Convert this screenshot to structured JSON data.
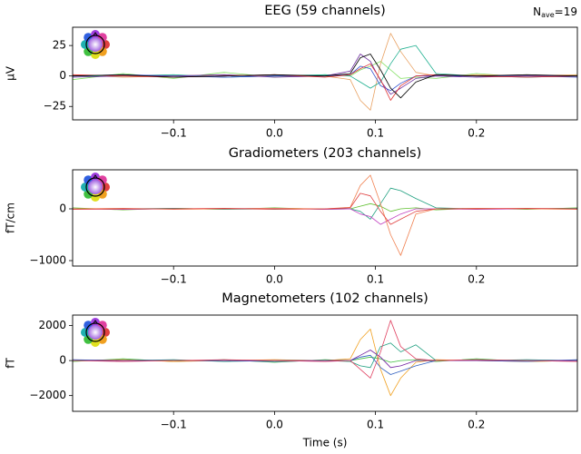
{
  "chart_data": [
    {
      "type": "line",
      "title": "EEG (59 channels)",
      "ylabel": "µV",
      "annotation": {
        "base": "N",
        "sub": "ave",
        "rest": "=19"
      },
      "xlim": [
        -0.2,
        0.3
      ],
      "xticks": [
        {
          "value": -0.1,
          "label": "−0.1"
        },
        {
          "value": 0,
          "label": "0.0"
        },
        {
          "value": 0.1,
          "label": "0.1"
        },
        {
          "value": 0.2,
          "label": "0.2"
        }
      ],
      "ylim": [
        -36,
        40
      ],
      "yticks": [
        {
          "value": -25,
          "label": "−25"
        },
        0,
        25
      ],
      "x": [
        -0.2,
        -0.15,
        -0.1,
        -0.05,
        0,
        0.05,
        0.075,
        0.085,
        0.095,
        0.105,
        0.115,
        0.125,
        0.14,
        0.16,
        0.2,
        0.25,
        0.3
      ],
      "series": [
        {
          "color": "#80e060",
          "values": [
            -3,
            2,
            -2,
            3,
            -1,
            1,
            0,
            5,
            8,
            12,
            5,
            -2,
            -1,
            -2,
            2,
            -1,
            1
          ]
        },
        {
          "color": "#e8a060",
          "values": [
            1,
            -1,
            0,
            1,
            0,
            0,
            -3,
            -20,
            -28,
            10,
            35,
            20,
            3,
            0,
            1,
            0,
            1
          ]
        },
        {
          "color": "#20b090",
          "values": [
            0,
            0,
            1,
            -1,
            0,
            1,
            0,
            -5,
            -10,
            -5,
            10,
            22,
            25,
            2,
            0,
            -1,
            0
          ]
        },
        {
          "color": "#3050d0",
          "values": [
            0,
            1,
            0,
            -1,
            0,
            0,
            1,
            8,
            6,
            -8,
            -12,
            -6,
            0,
            0,
            0,
            0,
            -1
          ]
        },
        {
          "color": "#7030a0",
          "values": [
            -1,
            0,
            0,
            1,
            -1,
            0,
            4,
            18,
            12,
            -4,
            -15,
            -10,
            -2,
            0,
            -1,
            0,
            0
          ]
        },
        {
          "color": "#e03030",
          "values": [
            1,
            0,
            -1,
            0,
            1,
            -1,
            1,
            6,
            10,
            -3,
            -20,
            -8,
            0,
            1,
            0,
            -1,
            0
          ]
        },
        {
          "color": "#000000",
          "values": [
            0,
            1,
            -1,
            0,
            1,
            0,
            2,
            15,
            18,
            5,
            -10,
            -18,
            -5,
            1,
            0,
            1,
            0
          ]
        }
      ]
    },
    {
      "type": "line",
      "title": "Gradiometers (203 channels)",
      "ylabel": "fT/cm",
      "xlim": [
        -0.2,
        0.3
      ],
      "xticks": [
        {
          "value": -0.1,
          "label": "−0.1"
        },
        {
          "value": 0,
          "label": "0.0"
        },
        {
          "value": 0.1,
          "label": "0.1"
        },
        {
          "value": 0.2,
          "label": "0.2"
        }
      ],
      "ylim": [
        -1105,
        754
      ],
      "yticks": [
        {
          "value": -1000,
          "label": "−1000"
        },
        0
      ],
      "x": [
        -0.2,
        -0.15,
        -0.1,
        -0.05,
        0,
        0.05,
        0.075,
        0.085,
        0.095,
        0.105,
        0.115,
        0.125,
        0.14,
        0.16,
        0.2,
        0.25,
        0.3
      ],
      "series": [
        {
          "color": "#60c030",
          "values": [
            20,
            -20,
            10,
            -10,
            20,
            -10,
            0,
            50,
            100,
            50,
            -50,
            0,
            20,
            -20,
            10,
            -10,
            20
          ]
        },
        {
          "color": "#20a080",
          "values": [
            0,
            0,
            10,
            -10,
            0,
            0,
            0,
            -50,
            -200,
            100,
            400,
            350,
            200,
            20,
            0,
            0,
            10
          ]
        },
        {
          "color": "#c040c0",
          "values": [
            0,
            -10,
            0,
            0,
            10,
            -10,
            0,
            -100,
            -150,
            -300,
            -200,
            -100,
            0,
            0,
            -10,
            0,
            0
          ]
        },
        {
          "color": "#f08050",
          "values": [
            0,
            10,
            -10,
            0,
            10,
            0,
            30,
            450,
            650,
            100,
            -500,
            -900,
            -100,
            0,
            10,
            0,
            -10
          ]
        },
        {
          "color": "#e04040",
          "values": [
            -10,
            0,
            0,
            10,
            -10,
            0,
            20,
            300,
            250,
            -50,
            -300,
            -200,
            -50,
            0,
            0,
            10,
            0
          ]
        }
      ]
    },
    {
      "type": "line",
      "title": "Magnetometers (102 channels)",
      "ylabel": "fT",
      "xlabel": "Time (s)",
      "xlim": [
        -0.2,
        0.3
      ],
      "xticks": [
        {
          "value": -0.1,
          "label": "−0.1"
        },
        {
          "value": 0,
          "label": "0.0"
        },
        {
          "value": 0.1,
          "label": "0.1"
        },
        {
          "value": 0.2,
          "label": "0.2"
        }
      ],
      "ylim": [
        -2900,
        2600
      ],
      "yticks": [
        {
          "value": -2000,
          "label": "−2000"
        },
        0,
        2000
      ],
      "x": [
        -0.2,
        -0.15,
        -0.1,
        -0.05,
        0,
        0.05,
        0.075,
        0.085,
        0.095,
        0.105,
        0.115,
        0.125,
        0.14,
        0.16,
        0.2,
        0.25,
        0.3
      ],
      "series": [
        {
          "color": "#40c040",
          "values": [
            -50,
            100,
            -50,
            50,
            -100,
            50,
            0,
            100,
            200,
            100,
            -100,
            0,
            50,
            -50,
            100,
            -50,
            0
          ]
        },
        {
          "color": "#f0a020",
          "values": [
            0,
            50,
            -50,
            0,
            50,
            0,
            100,
            1200,
            1800,
            -500,
            -2000,
            -1000,
            -100,
            50,
            0,
            -50,
            0
          ]
        },
        {
          "color": "#20a080",
          "values": [
            0,
            0,
            50,
            -50,
            0,
            0,
            -50,
            -300,
            -400,
            800,
            1000,
            500,
            900,
            0,
            0,
            50,
            0
          ]
        },
        {
          "color": "#3060c0",
          "values": [
            50,
            0,
            0,
            0,
            -50,
            0,
            0,
            200,
            300,
            -400,
            -800,
            -600,
            -300,
            0,
            0,
            -50,
            50
          ]
        },
        {
          "color": "#7020a0",
          "values": [
            0,
            0,
            0,
            0,
            0,
            0,
            0,
            300,
            600,
            200,
            -400,
            -300,
            0,
            0,
            0,
            0,
            0
          ]
        },
        {
          "color": "#e04060",
          "values": [
            0,
            -50,
            0,
            50,
            0,
            -50,
            0,
            -500,
            -1000,
            500,
            2300,
            800,
            100,
            0,
            50,
            0,
            -50
          ]
        }
      ]
    }
  ]
}
